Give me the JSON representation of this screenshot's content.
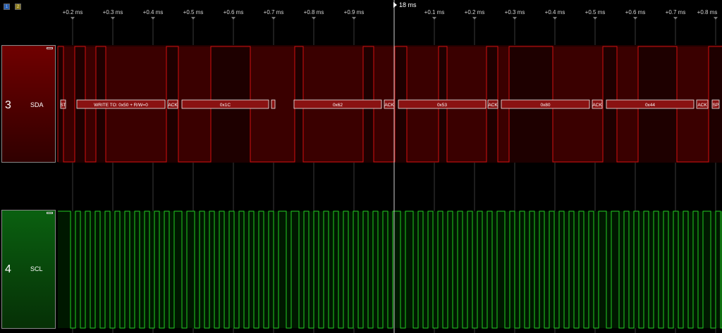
{
  "toolbar": {
    "marker1_label": "1",
    "marker2_label": "2",
    "marker1_color": "#2a5fb0",
    "marker2_color": "#8a7a20"
  },
  "timeline": {
    "cursor_label": "18 ms",
    "tick_labels": [
      "+0.2 ms",
      "+0.3 ms",
      "+0.4 ms",
      "+0.5 ms",
      "+0.6 ms",
      "+0.7 ms",
      "+0.8 ms",
      "+0.9 ms",
      "+0.1 ms",
      "+0.2 ms",
      "+0.3 ms",
      "+0.4 ms",
      "+0.5 ms",
      "+0.6 ms",
      "+0.7 ms",
      "+0.8 ms"
    ]
  },
  "channels": [
    {
      "number": "3",
      "name": "SDA",
      "color": "#d11010",
      "panel_color": "#700000"
    },
    {
      "number": "4",
      "name": "SCL",
      "color": "#22cc22",
      "panel_color": "#0a6010"
    }
  ],
  "decoded_frames": [
    "ST",
    "WRITE TO: 0x50 + R/W=0",
    "ACK",
    "0x1C",
    "",
    "0x62",
    "ACK",
    "0x53",
    "ACK",
    "0x80",
    "ACK",
    "0x44",
    "ACK",
    "SP"
  ]
}
